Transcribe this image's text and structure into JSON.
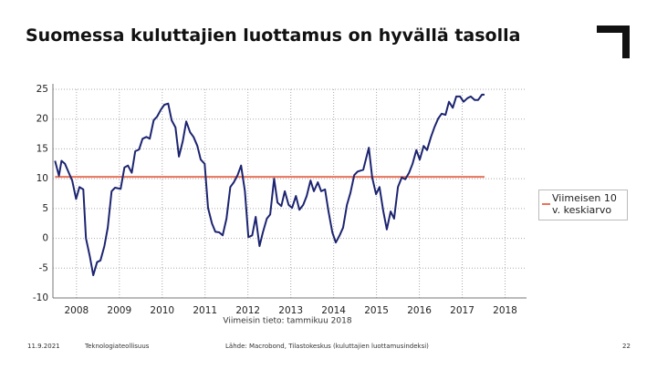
{
  "title": "Suomessa kuluttajien luottamus on hyvällä tasolla",
  "chart_data": {
    "type": "line",
    "note": "Viimeisin tieto: tammikuu 2018",
    "x": [
      2008.0,
      2008.09,
      2008.15,
      2008.23,
      2008.32,
      2008.4,
      2008.49,
      2008.57,
      2008.66,
      2008.72,
      2008.81,
      2008.89,
      2008.98,
      2009.06,
      2009.15,
      2009.23,
      2009.32,
      2009.4,
      2009.53,
      2009.62,
      2009.7,
      2009.79,
      2009.87,
      2009.96,
      2010.04,
      2010.13,
      2010.21,
      2010.3,
      2010.38,
      2010.47,
      2010.55,
      2010.64,
      2010.72,
      2010.81,
      2010.89,
      2010.98,
      2011.06,
      2011.15,
      2011.23,
      2011.32,
      2011.4,
      2011.49,
      2011.57,
      2011.66,
      2011.74,
      2011.83,
      2011.91,
      2012.0,
      2012.09,
      2012.17,
      2012.26,
      2012.34,
      2012.43,
      2012.51,
      2012.6,
      2012.68,
      2012.77,
      2012.85,
      2012.94,
      2013.02,
      2013.11,
      2013.19,
      2013.28,
      2013.36,
      2013.45,
      2013.53,
      2013.62,
      2013.7,
      2013.79,
      2013.87,
      2013.96,
      2014.04,
      2014.13,
      2014.21,
      2014.3,
      2014.38,
      2014.47,
      2014.55,
      2014.64,
      2014.72,
      2014.81,
      2014.89,
      2014.98,
      2015.06,
      2015.19,
      2015.32,
      2015.4,
      2015.49,
      2015.57,
      2015.66,
      2015.74,
      2015.83,
      2015.91,
      2016.0,
      2016.09,
      2016.17,
      2016.26,
      2016.34,
      2016.43,
      2016.51,
      2016.6,
      2016.68,
      2016.77,
      2016.85,
      2016.94,
      2017.02,
      2017.11,
      2017.19,
      2017.28,
      2017.36,
      2017.45,
      2017.53,
      2017.62,
      2017.7,
      2017.79,
      2017.87,
      2017.96,
      2018.02
    ],
    "series": [
      {
        "color": "#1c2470",
        "values": [
          13.0,
          10.5,
          13.0,
          12.5,
          11.0,
          9.7,
          6.6,
          8.6,
          8.2,
          0.0,
          -3.0,
          -6.2,
          -4.0,
          -3.7,
          -1.3,
          1.8,
          7.9,
          8.5,
          8.3,
          11.9,
          12.2,
          11.0,
          14.6,
          14.9,
          16.7,
          17.0,
          16.7,
          19.8,
          20.4,
          21.6,
          22.4,
          22.6,
          19.8,
          18.6,
          13.7,
          16.3,
          19.6,
          17.8,
          17.0,
          15.5,
          13.2,
          12.5,
          5.1,
          2.5,
          1.1,
          1.0,
          0.5,
          3.3,
          8.6,
          9.4,
          10.6,
          12.2,
          7.9,
          0.2,
          0.5,
          3.6,
          -1.3,
          1.0,
          3.3,
          4.0,
          10.0,
          6.0,
          5.4,
          7.9,
          5.6,
          5.1,
          7.1,
          4.8,
          5.6,
          7.1,
          9.7,
          7.9,
          9.4,
          7.9,
          8.2,
          4.5,
          1.0,
          -0.7,
          0.5,
          1.8,
          5.6,
          7.6,
          10.6,
          11.2,
          11.5,
          15.2,
          10.2,
          7.4,
          8.6,
          4.5,
          1.5,
          4.5,
          3.3,
          8.6,
          10.2,
          9.9,
          11.0,
          12.5,
          14.8,
          13.2,
          15.5,
          14.8,
          17.0,
          18.6,
          20.1,
          20.9,
          20.7,
          22.9,
          21.9,
          23.8,
          23.8,
          22.9,
          23.5,
          23.8,
          23.2,
          23.2,
          24.1,
          24.1
        ]
      }
    ],
    "average": {
      "name": "Viimeisen 10 v. keskiarvo",
      "value": 10.3,
      "color": "#e8735a"
    },
    "xlim": [
      2007.95,
      2019.0
    ],
    "xticks": [
      {
        "value": 2008.5,
        "label": "2008"
      },
      {
        "value": 2009.5,
        "label": "2009"
      },
      {
        "value": 2010.5,
        "label": "2010"
      },
      {
        "value": 2011.5,
        "label": "2011"
      },
      {
        "value": 2012.5,
        "label": "2012"
      },
      {
        "value": 2013.5,
        "label": "2013"
      },
      {
        "value": 2014.5,
        "label": "2014"
      },
      {
        "value": 2015.5,
        "label": "2015"
      },
      {
        "value": 2016.5,
        "label": "2016"
      },
      {
        "value": 2017.5,
        "label": "2017"
      },
      {
        "value": 2018.5,
        "label": "2018"
      }
    ],
    "ylim": [
      -10,
      25
    ],
    "yticks": [
      -10,
      -5,
      0,
      5,
      10,
      15,
      20,
      25
    ],
    "grid": true
  },
  "footer": {
    "date": "11.9.2021",
    "org": "Teknologiateollisuus",
    "source": "Lähde: Macrobond, Tilastokeskus (kuluttajien luottamusindeksi)",
    "page": "22"
  }
}
